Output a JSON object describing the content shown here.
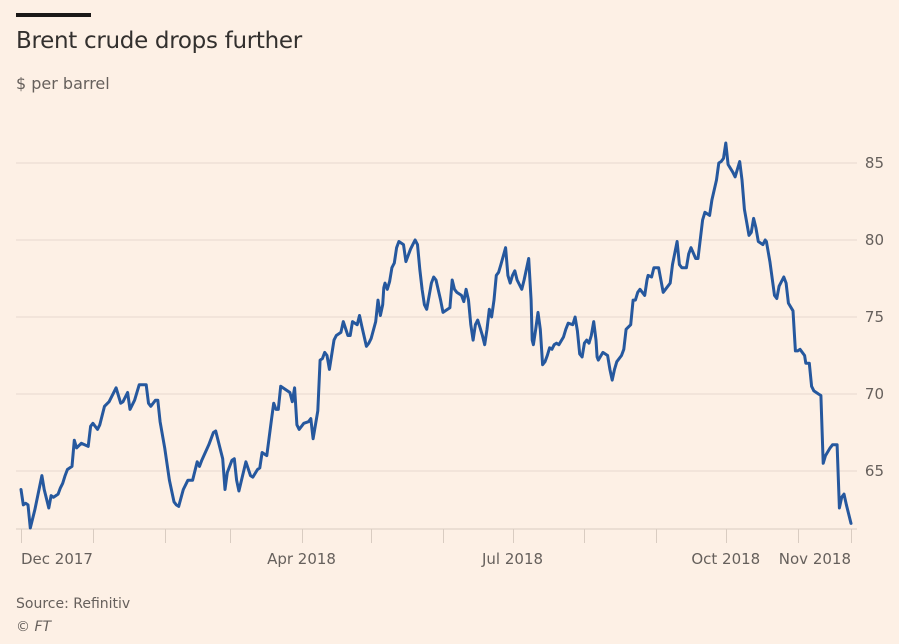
{
  "header": {
    "title": "Brent crude drops further",
    "subtitle": "$ per barrel"
  },
  "footer": {
    "source": "Source: Refinitiv",
    "copyright": "© FT"
  },
  "colors": {
    "background": "#fdf0e5",
    "line": "#26589e",
    "grid": "#e6d9ce",
    "text": "#66605c"
  },
  "chart_data": {
    "type": "line",
    "title": "Brent crude drops further",
    "subtitle": "$ per barrel",
    "xlabel": "",
    "ylabel": "$ per barrel",
    "x_unit": "days since 2017-12-01",
    "xlim": [
      0,
      358
    ],
    "ylim": [
      61.2,
      87
    ],
    "yticks": [
      65,
      70,
      75,
      80,
      85
    ],
    "grid": true,
    "y_axis_side": "right",
    "legend": "none",
    "month_ticks": [
      0,
      31,
      62,
      90,
      121,
      151,
      182,
      212,
      243,
      274,
      304,
      335,
      358
    ],
    "x_labels": [
      {
        "day": 0,
        "label": "Dec 2017",
        "align": "start"
      },
      {
        "day": 121,
        "label": "Apr 2018",
        "align": "middle"
      },
      {
        "day": 212,
        "label": "Jul 2018",
        "align": "middle"
      },
      {
        "day": 304,
        "label": "Oct 2018",
        "align": "middle"
      },
      {
        "day": 358,
        "label": "Nov 2018",
        "align": "end"
      }
    ],
    "source": "Source: Refinitiv",
    "series": [
      {
        "name": "Brent crude",
        "points": [
          [
            0,
            63.8
          ],
          [
            1,
            62.8
          ],
          [
            2,
            62.9
          ],
          [
            3,
            62.8
          ],
          [
            4,
            61.3
          ],
          [
            6,
            62.5
          ],
          [
            9,
            64.7
          ],
          [
            10,
            63.8
          ],
          [
            12,
            62.6
          ],
          [
            13,
            63.4
          ],
          [
            14,
            63.3
          ],
          [
            16,
            63.5
          ],
          [
            17,
            63.9
          ],
          [
            18,
            64.2
          ],
          [
            19,
            64.7
          ],
          [
            20,
            65.1
          ],
          [
            22,
            65.3
          ],
          [
            23,
            67.0
          ],
          [
            24,
            66.5
          ],
          [
            26,
            66.8
          ],
          [
            29,
            66.6
          ],
          [
            30,
            67.9
          ],
          [
            31,
            68.1
          ],
          [
            33,
            67.7
          ],
          [
            34,
            68.0
          ],
          [
            36,
            69.2
          ],
          [
            38,
            69.5
          ],
          [
            41,
            70.4
          ],
          [
            43,
            69.4
          ],
          [
            44,
            69.5
          ],
          [
            46,
            70.1
          ],
          [
            47,
            69.0
          ],
          [
            49,
            69.6
          ],
          [
            51,
            70.6
          ],
          [
            54,
            70.6
          ],
          [
            55,
            69.4
          ],
          [
            56,
            69.2
          ],
          [
            58,
            69.6
          ],
          [
            59,
            69.6
          ],
          [
            60,
            68.2
          ],
          [
            62,
            66.5
          ],
          [
            64,
            64.4
          ],
          [
            66,
            63.0
          ],
          [
            67,
            62.8
          ],
          [
            68,
            62.7
          ],
          [
            70,
            63.8
          ],
          [
            72,
            64.4
          ],
          [
            74,
            64.4
          ],
          [
            76,
            65.6
          ],
          [
            77,
            65.3
          ],
          [
            78,
            65.7
          ],
          [
            81,
            66.7
          ],
          [
            83,
            67.5
          ],
          [
            84,
            67.6
          ],
          [
            87,
            65.8
          ],
          [
            88,
            63.8
          ],
          [
            89,
            64.9
          ],
          [
            91,
            65.7
          ],
          [
            92,
            65.8
          ],
          [
            93,
            64.4
          ],
          [
            94,
            63.7
          ],
          [
            97,
            65.6
          ],
          [
            99,
            64.7
          ],
          [
            100,
            64.6
          ],
          [
            102,
            65.1
          ],
          [
            103,
            65.2
          ],
          [
            104,
            66.2
          ],
          [
            106,
            66.0
          ],
          [
            108,
            68.3
          ],
          [
            109,
            69.4
          ],
          [
            110,
            69.0
          ],
          [
            111,
            69.0
          ],
          [
            112,
            70.5
          ],
          [
            114,
            70.3
          ],
          [
            116,
            70.1
          ],
          [
            117,
            69.5
          ],
          [
            118,
            70.4
          ],
          [
            119,
            68.0
          ],
          [
            120,
            67.7
          ],
          [
            122,
            68.1
          ],
          [
            124,
            68.2
          ],
          [
            125,
            68.4
          ],
          [
            126,
            67.1
          ],
          [
            128,
            68.9
          ],
          [
            129,
            72.2
          ],
          [
            130,
            72.3
          ],
          [
            131,
            72.7
          ],
          [
            132,
            72.5
          ],
          [
            133,
            71.6
          ],
          [
            135,
            73.5
          ],
          [
            136,
            73.8
          ],
          [
            138,
            74.0
          ],
          [
            139,
            74.7
          ],
          [
            141,
            73.8
          ],
          [
            142,
            73.8
          ],
          [
            143,
            74.7
          ],
          [
            145,
            74.5
          ],
          [
            146,
            75.1
          ],
          [
            147,
            74.4
          ],
          [
            149,
            73.1
          ],
          [
            150,
            73.3
          ],
          [
            151,
            73.6
          ],
          [
            153,
            74.7
          ],
          [
            154,
            76.1
          ],
          [
            155,
            75.1
          ],
          [
            156,
            75.8
          ],
          [
            156.5,
            76.9
          ],
          [
            157,
            77.2
          ],
          [
            158,
            76.8
          ],
          [
            159,
            77.3
          ],
          [
            160,
            78.2
          ],
          [
            161,
            78.5
          ],
          [
            162,
            79.5
          ],
          [
            163,
            79.9
          ],
          [
            165,
            79.7
          ],
          [
            166,
            78.6
          ],
          [
            168,
            79.4
          ],
          [
            169,
            79.7
          ],
          [
            170,
            80.0
          ],
          [
            171,
            79.7
          ],
          [
            172,
            78.1
          ],
          [
            173,
            76.8
          ],
          [
            174,
            75.8
          ],
          [
            175,
            75.5
          ],
          [
            177,
            77.2
          ],
          [
            178,
            77.6
          ],
          [
            179,
            77.4
          ],
          [
            181,
            76.1
          ],
          [
            182,
            75.3
          ],
          [
            184,
            75.5
          ],
          [
            185,
            75.6
          ],
          [
            186,
            77.4
          ],
          [
            187,
            76.8
          ],
          [
            188,
            76.6
          ],
          [
            190,
            76.4
          ],
          [
            191,
            76.0
          ],
          [
            192,
            76.8
          ],
          [
            193,
            76.1
          ],
          [
            194,
            74.5
          ],
          [
            195,
            73.5
          ],
          [
            196,
            74.5
          ],
          [
            197,
            74.8
          ],
          [
            198,
            74.3
          ],
          [
            199,
            73.8
          ],
          [
            200,
            73.2
          ],
          [
            201,
            74.2
          ],
          [
            202,
            75.5
          ],
          [
            203,
            75.0
          ],
          [
            204,
            76.1
          ],
          [
            205,
            77.7
          ],
          [
            206,
            77.9
          ],
          [
            207,
            78.4
          ],
          [
            209,
            79.5
          ],
          [
            210,
            77.7
          ],
          [
            211,
            77.2
          ],
          [
            212,
            77.7
          ],
          [
            213,
            78.0
          ],
          [
            214,
            77.4
          ],
          [
            216,
            76.8
          ],
          [
            217,
            77.4
          ],
          [
            219,
            78.8
          ],
          [
            220,
            76.1
          ],
          [
            220.5,
            73.5
          ],
          [
            221,
            73.2
          ],
          [
            222,
            74.2
          ],
          [
            223,
            75.3
          ],
          [
            224,
            74.2
          ],
          [
            225,
            71.9
          ],
          [
            226,
            72.1
          ],
          [
            227,
            72.5
          ],
          [
            228,
            73.0
          ],
          [
            229,
            72.9
          ],
          [
            230,
            73.2
          ],
          [
            231,
            73.3
          ],
          [
            232,
            73.2
          ],
          [
            234,
            73.7
          ],
          [
            235,
            74.2
          ],
          [
            236,
            74.6
          ],
          [
            238,
            74.5
          ],
          [
            239,
            75.0
          ],
          [
            240,
            74.1
          ],
          [
            241,
            72.6
          ],
          [
            242,
            72.4
          ],
          [
            243,
            73.3
          ],
          [
            244,
            73.5
          ],
          [
            245,
            73.3
          ],
          [
            246,
            73.8
          ],
          [
            247,
            74.7
          ],
          [
            248,
            73.5
          ],
          [
            248.5,
            72.4
          ],
          [
            249,
            72.2
          ],
          [
            251,
            72.7
          ],
          [
            253,
            72.5
          ],
          [
            254,
            71.6
          ],
          [
            255,
            70.9
          ],
          [
            256,
            71.6
          ],
          [
            257,
            72.1
          ],
          [
            259,
            72.5
          ],
          [
            260,
            72.9
          ],
          [
            261,
            74.2
          ],
          [
            263,
            74.5
          ],
          [
            264,
            76.1
          ],
          [
            265,
            76.1
          ],
          [
            266,
            76.6
          ],
          [
            267,
            76.8
          ],
          [
            269,
            76.4
          ],
          [
            270,
            77.4
          ],
          [
            270.5,
            77.7
          ],
          [
            272,
            77.6
          ],
          [
            273,
            78.2
          ],
          [
            275,
            78.2
          ],
          [
            276,
            77.4
          ],
          [
            277,
            76.6
          ],
          [
            278,
            76.8
          ],
          [
            280,
            77.2
          ],
          [
            281,
            78.4
          ],
          [
            283,
            79.9
          ],
          [
            284,
            78.4
          ],
          [
            285,
            78.2
          ],
          [
            287,
            78.2
          ],
          [
            288,
            79.1
          ],
          [
            289,
            79.5
          ],
          [
            291,
            78.8
          ],
          [
            292,
            78.8
          ],
          [
            294,
            81.3
          ],
          [
            295,
            81.8
          ],
          [
            297,
            81.6
          ],
          [
            298,
            82.6
          ],
          [
            300,
            83.9
          ],
          [
            301,
            85.0
          ],
          [
            302,
            85.1
          ],
          [
            303,
            85.3
          ],
          [
            304,
            86.3
          ],
          [
            305,
            84.9
          ],
          [
            307,
            84.4
          ],
          [
            308,
            84.1
          ],
          [
            310,
            85.1
          ],
          [
            311,
            83.9
          ],
          [
            312,
            82.0
          ],
          [
            314,
            80.3
          ],
          [
            315,
            80.5
          ],
          [
            316,
            81.4
          ],
          [
            317,
            80.8
          ],
          [
            318,
            79.9
          ],
          [
            320,
            79.7
          ],
          [
            321,
            80.0
          ],
          [
            321.5,
            79.9
          ],
          [
            323,
            78.6
          ],
          [
            325,
            76.4
          ],
          [
            326,
            76.2
          ],
          [
            327,
            77.0
          ],
          [
            329,
            77.6
          ],
          [
            330,
            77.2
          ],
          [
            331,
            75.9
          ],
          [
            333,
            75.4
          ],
          [
            334,
            72.8
          ],
          [
            335,
            72.8
          ],
          [
            336,
            72.9
          ],
          [
            338,
            72.5
          ],
          [
            338.5,
            72.0
          ],
          [
            340,
            72.0
          ],
          [
            341,
            70.5
          ],
          [
            342,
            70.2
          ],
          [
            344,
            70.0
          ],
          [
            345,
            69.9
          ],
          [
            346,
            65.5
          ],
          [
            347,
            66.0
          ],
          [
            349,
            66.5
          ],
          [
            350,
            66.7
          ],
          [
            352,
            66.7
          ],
          [
            353,
            62.6
          ],
          [
            354,
            63.3
          ],
          [
            355,
            63.5
          ],
          [
            356,
            62.8
          ],
          [
            358,
            61.6
          ]
        ]
      }
    ]
  }
}
